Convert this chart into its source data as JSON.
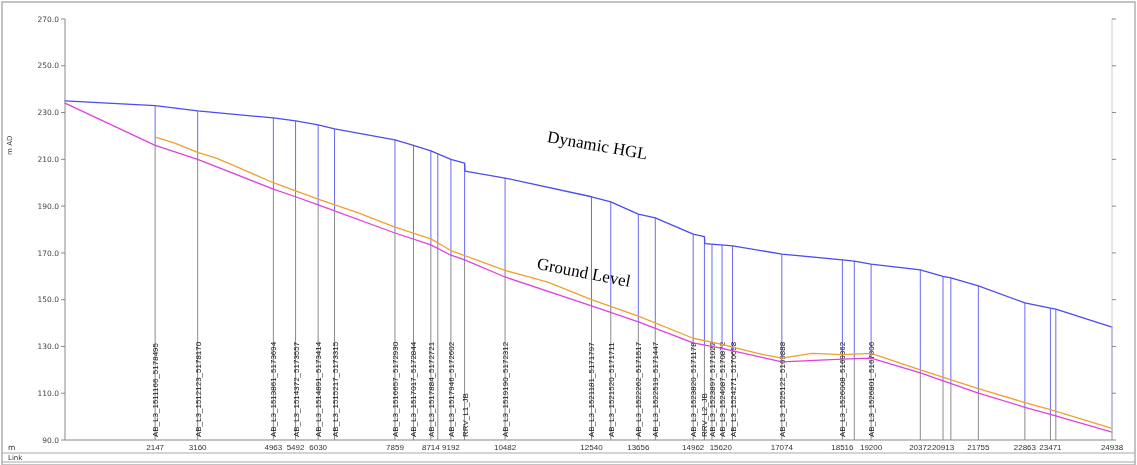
{
  "chart_data": {
    "type": "line",
    "xlabel": "m",
    "ylabel": "m AD",
    "xlim": [
      0,
      24938
    ],
    "ylim": [
      90,
      270
    ],
    "xticks": [
      2147,
      3160,
      4963,
      5492,
      6030,
      7859,
      8714,
      9192,
      10482,
      12540,
      13656,
      14962,
      15620,
      17074,
      18516,
      19200,
      20372,
      20913,
      21755,
      22863,
      23471,
      24938
    ],
    "yticks": [
      {
        "value": 90,
        "label": "90.0"
      },
      {
        "value": 110,
        "label": "110.0"
      },
      {
        "value": 130,
        "label": "130.0"
      },
      {
        "value": 150,
        "label": "150.0"
      },
      {
        "value": 170,
        "label": "170.0"
      },
      {
        "value": 190,
        "label": "190.0"
      },
      {
        "value": 210,
        "label": "210.0"
      },
      {
        "value": 230,
        "label": "230.0"
      },
      {
        "value": 250,
        "label": "250.0"
      },
      {
        "value": 270,
        "label": "270.0"
      }
    ],
    "grid": false,
    "legend": false,
    "marker": "none",
    "line_style": "solid",
    "series": [
      {
        "name": "Dynamic HGL",
        "color": "#4b4bf0",
        "x": [
          0,
          2147,
          3160,
          4963,
          5492,
          6030,
          6420,
          7859,
          8300,
          8714,
          9192,
          9518,
          9530,
          10482,
          12540,
          13000,
          13656,
          14060,
          14962,
          15230,
          15240,
          15620,
          15900,
          17074,
          18516,
          18800,
          19200,
          20372,
          20913,
          21100,
          21755,
          22863,
          23471,
          23600,
          24938
        ],
        "values": [
          235,
          233,
          230.7,
          227.7,
          226.4,
          224.7,
          223,
          218.3,
          216,
          213.6,
          210,
          208.4,
          205,
          202,
          194,
          191.8,
          186.6,
          185,
          178,
          177,
          174,
          173.4,
          173,
          169.5,
          167,
          166.5,
          165.2,
          162.7,
          160,
          159.3,
          155.9,
          148.6,
          146.4,
          146,
          138.3
        ]
      },
      {
        "name": "Ground Level",
        "color": "#f0a030",
        "x": [
          2147,
          2600,
          3160,
          3600,
          4000,
          4963,
          5492,
          6030,
          7000,
          7859,
          8714,
          9192,
          10482,
          11000,
          11500,
          12540,
          13656,
          14962,
          15620,
          16500,
          17074,
          17800,
          18516,
          19200,
          20372,
          21755,
          22863,
          23471,
          24938
        ],
        "values": [
          219.5,
          217,
          213,
          210.5,
          207.5,
          200,
          196.5,
          193,
          187,
          181,
          176,
          171,
          162.5,
          160,
          157.5,
          150,
          143,
          133.5,
          131,
          127,
          125,
          127,
          126.5,
          127,
          120,
          112,
          106,
          103,
          95
        ]
      },
      {
        "color": "#e040e0",
        "x": [
          0,
          2147,
          3160,
          4963,
          5492,
          6030,
          7859,
          8714,
          9192,
          9518,
          10482,
          12540,
          13656,
          14962,
          15620,
          17074,
          18516,
          19200,
          20372,
          21755,
          22863,
          23471,
          24938
        ],
        "values": [
          234,
          216,
          210,
          197.3,
          194,
          190.5,
          178.5,
          173.4,
          169,
          167,
          159.7,
          147.3,
          140.5,
          131.5,
          129.3,
          123.4,
          124.6,
          125,
          118.7,
          110,
          104,
          101,
          93.4
        ]
      }
    ],
    "ref_lines": [
      {
        "axis": "x",
        "value": 2147,
        "label": "AB_L3_1511166_5178495"
      },
      {
        "axis": "x",
        "value": 3160,
        "label": "AB_L3_1512123_5178170"
      },
      {
        "axis": "x",
        "value": 4963,
        "label": "AB_L3_1513861_5173694"
      },
      {
        "axis": "x",
        "value": 5492,
        "label": "AB_L3_1514372_5173557"
      },
      {
        "axis": "x",
        "value": 6030,
        "label": "AB_L3_1514891_5173414"
      },
      {
        "axis": "x",
        "value": 6420,
        "label": "AB_L3_1515217_5173315"
      },
      {
        "axis": "x",
        "value": 7859,
        "label": "AB_L3_1516657_5172930"
      },
      {
        "axis": "x",
        "value": 8300,
        "label": "AB_L3_1517017_5172844"
      },
      {
        "axis": "x",
        "value": 8714,
        "label": "AB_L3_1517884_5172721"
      },
      {
        "axis": "x",
        "value": 8880,
        "label": null
      },
      {
        "axis": "x",
        "value": 9192,
        "label": "AB_L3_1517946_5172602"
      },
      {
        "axis": "x",
        "value": 9518,
        "label": "RRV_L1_JB"
      },
      {
        "axis": "x",
        "value": 10482,
        "label": "AB_L3_1519190_5172312"
      },
      {
        "axis": "x",
        "value": 12540,
        "label": "AB_L3_1521181_5171797"
      },
      {
        "axis": "x",
        "value": 13000,
        "label": "AB_L3_1521520_5171711"
      },
      {
        "axis": "x",
        "value": 13656,
        "label": "AB_L3_1522262_5171517"
      },
      {
        "axis": "x",
        "value": 14060,
        "label": "AB_L3_1522519_5171447"
      },
      {
        "axis": "x",
        "value": 14962,
        "label": "AB_L3_1523820_5171178"
      },
      {
        "axis": "x",
        "value": 15230,
        "label": "RRV_L2_JB"
      },
      {
        "axis": "x",
        "value": 15410,
        "label": "AB_L3_1523897_5171022"
      },
      {
        "axis": "x",
        "value": 15650,
        "label": "AB_L3_1524087_5170872"
      },
      {
        "axis": "x",
        "value": 15900,
        "label": "AB_L3_1524271_5170698"
      },
      {
        "axis": "x",
        "value": 17074,
        "label": "AB_L3_1525122_5169888"
      },
      {
        "axis": "x",
        "value": 18516,
        "label": "AB_L3_1526008_5169862"
      },
      {
        "axis": "x",
        "value": 18800,
        "label": null
      },
      {
        "axis": "x",
        "value": 19200,
        "label": "AB_L3_1526801_5167806"
      },
      {
        "axis": "x",
        "value": 20372,
        "label": null
      },
      {
        "axis": "x",
        "value": 20913,
        "label": null
      },
      {
        "axis": "x",
        "value": 21100,
        "label": null
      },
      {
        "axis": "x",
        "value": 21755,
        "label": null
      },
      {
        "axis": "x",
        "value": 22863,
        "label": null
      },
      {
        "axis": "x",
        "value": 23471,
        "label": null
      },
      {
        "axis": "x",
        "value": 23600,
        "label": null
      },
      {
        "axis": "x",
        "value": 24938,
        "label": null
      }
    ],
    "annotations": [
      "Link"
    ]
  }
}
